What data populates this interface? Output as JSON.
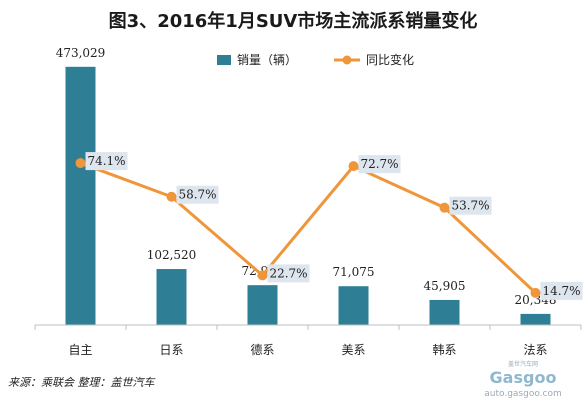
{
  "chart_data": {
    "type": "bar",
    "title": "图3、2016年1月SUV市场主流派系销量变化",
    "categories": [
      "自主",
      "日系",
      "德系",
      "美系",
      "韩系",
      "法系"
    ],
    "series": [
      {
        "name": "销量（辆）",
        "type": "bar",
        "values": [
          473029,
          102520,
          72968,
          71075,
          45905,
          20348
        ],
        "labels": [
          "473,029",
          "102,520",
          "72,968",
          "71,075",
          "45,905",
          "20,348"
        ]
      },
      {
        "name": "同比变化",
        "type": "line",
        "values": [
          74.1,
          58.7,
          22.7,
          72.7,
          53.7,
          14.7
        ],
        "labels": [
          "74.1%",
          "58.7%",
          "22.7%",
          "72.7%",
          "53.7%",
          "14.7%"
        ]
      }
    ],
    "ylim_bar": [
      0,
      480000
    ],
    "ylim_line": [
      0,
      135
    ],
    "grid": false,
    "legend_position": "top-center"
  },
  "colors": {
    "bar": "#2e7f96",
    "line": "#f0963a",
    "label_bg": "#dde5ee"
  },
  "source_text": "来源：乘联会 整理：盖世汽车",
  "watermark": {
    "top": "盖世汽车网",
    "main": "Gasgoo",
    "sub": "auto.gasgoo.com"
  }
}
